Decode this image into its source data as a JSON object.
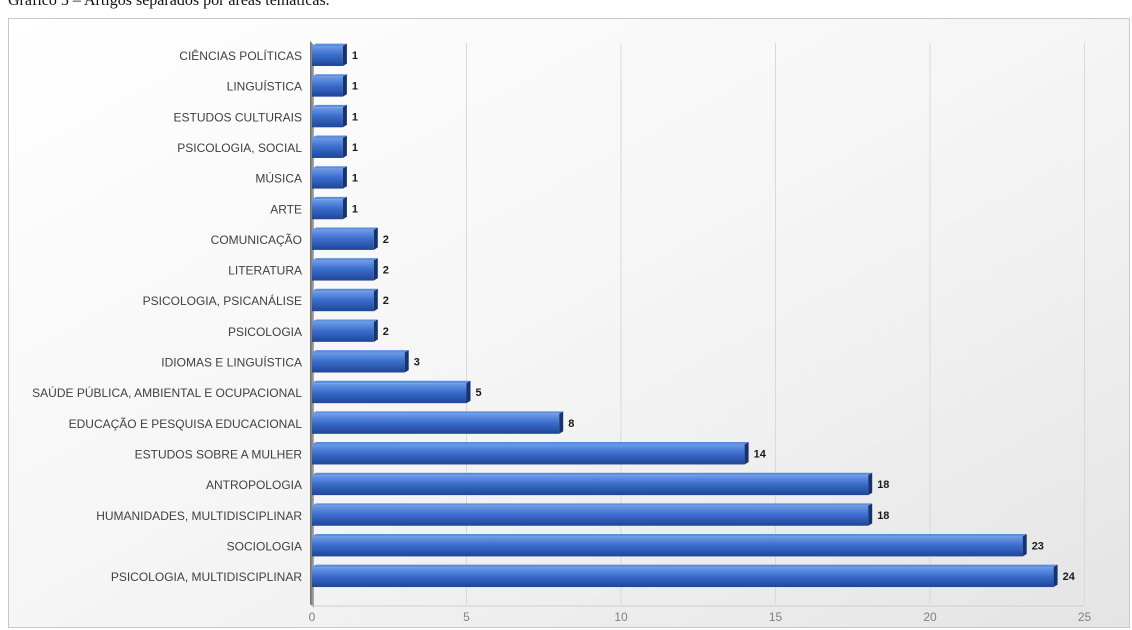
{
  "caption": "Gráfico 5 – Artigos separados por áreas temáticas.",
  "chart_data": {
    "type": "bar",
    "orientation": "horizontal",
    "title": "",
    "xlabel": "",
    "ylabel": "",
    "xlim": [
      0,
      25
    ],
    "x_ticks": [
      "0",
      "5",
      "10",
      "15",
      "20",
      "25"
    ],
    "grid": true,
    "legend": "none",
    "categories": [
      "CIÊNCIAS POLÍTICAS",
      "LINGUÍSTICA",
      "ESTUDOS CULTURAIS",
      "PSICOLOGIA, SOCIAL",
      "MÚSICA",
      "ARTE",
      "COMUNICAÇÃO",
      "LITERATURA",
      "PSICOLOGIA, PSICANÁLISE",
      "PSICOLOGIA",
      "IDIOMAS E LINGUÍSTICA",
      "SAÚDE PÚBLICA, AMBIENTAL E OCUPACIONAL",
      "EDUCAÇÃO E PESQUISA EDUCACIONAL",
      "ESTUDOS SOBRE A MULHER",
      "ANTROPOLOGIA",
      "HUMANIDADES, MULTIDISCIPLINAR",
      "SOCIOLOGIA",
      "PSICOLOGIA, MULTIDISCIPLINAR"
    ],
    "values": [
      1,
      1,
      1,
      1,
      1,
      1,
      2,
      2,
      2,
      2,
      3,
      5,
      8,
      14,
      18,
      18,
      23,
      24
    ],
    "value_labels": [
      "1",
      "1",
      "1",
      "1",
      "1",
      "1",
      "2",
      "2",
      "2",
      "2",
      "3",
      "5",
      "8",
      "14",
      "18",
      "18",
      "23",
      "24"
    ],
    "colors": {
      "bar_light": "#5b8ee0",
      "bar_mid": "#3467c9",
      "bar_dark": "#1c3f8e",
      "bar_side": "#16326f",
      "grid": "#d9d9d9"
    }
  }
}
